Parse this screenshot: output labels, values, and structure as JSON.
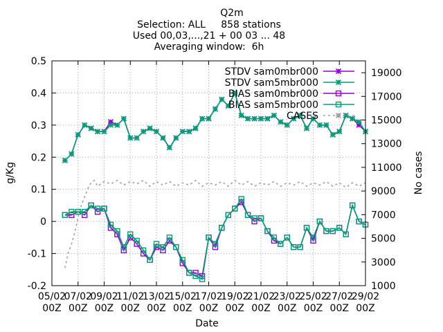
{
  "chart_data": {
    "type": "line",
    "title": "Q2m",
    "subtitle_lines": [
      "Selection: ALL     858 stations",
      "Used 00,03,...,21 + 00 03 ... 48",
      "Averaging window:  6h"
    ],
    "xlabel": "Date",
    "ylabel": "g/Kg",
    "y2label": "No cases",
    "ylim": [
      -0.2,
      0.5
    ],
    "y_ticks": [
      -0.2,
      -0.1,
      0.0,
      0.1,
      0.2,
      0.3,
      0.4,
      0.5
    ],
    "y_tick_labels": [
      "-0.2",
      "-0.1",
      "0",
      "0.1",
      "0.2",
      "0.3",
      "0.4",
      "0.5"
    ],
    "y2lim": [
      1000,
      20000
    ],
    "y2_ticks": [
      1000,
      3000,
      5000,
      7000,
      9000,
      11000,
      13000,
      15000,
      17000,
      19000
    ],
    "y2_tick_labels": [
      "1000",
      "3000",
      "5000",
      "7000",
      "9000",
      "11000",
      "13000",
      "15000",
      "17000",
      "19000"
    ],
    "xlim": [
      0,
      24
    ],
    "x_ticks": [
      0,
      2,
      4,
      6,
      8,
      10,
      12,
      14,
      16,
      18,
      20,
      22,
      24
    ],
    "x_tick_labels": [
      [
        "05/02",
        "00Z"
      ],
      [
        "07/02",
        "00Z"
      ],
      [
        "09/02",
        "00Z"
      ],
      [
        "11/02",
        "00Z"
      ],
      [
        "13/02",
        "00Z"
      ],
      [
        "15/02",
        "00Z"
      ],
      [
        "17/02",
        "00Z"
      ],
      [
        "19/02",
        "00Z"
      ],
      [
        "21/02",
        "00Z"
      ],
      [
        "23/02",
        "00Z"
      ],
      [
        "25/02",
        "00Z"
      ],
      [
        "27/02",
        "00Z"
      ],
      [
        "29/02",
        "00Z"
      ]
    ],
    "x_unit": "days from 05/02 00Z",
    "grid": true,
    "legend_position": "top-right",
    "series": [
      {
        "name": "STDV sam0mbr000",
        "axis": "y",
        "marker": "star",
        "color": "#9400d3",
        "x": [
          1,
          1.5,
          2,
          2.5,
          3,
          3.5,
          4,
          4.5,
          5,
          5.5,
          6,
          6.5,
          7,
          7.5,
          8,
          8.5,
          9,
          9.5,
          10,
          10.5,
          11,
          11.5,
          12,
          12.5,
          13,
          13.5,
          14,
          14.5,
          15,
          15.5,
          16,
          16.5,
          17,
          17.5,
          18,
          18.5,
          19,
          19.5,
          20,
          20.5,
          21,
          21.5,
          22,
          22.5,
          23,
          23.5,
          24
        ],
        "y": [
          0.19,
          0.21,
          0.27,
          0.3,
          0.29,
          0.28,
          0.28,
          0.31,
          0.3,
          0.32,
          0.26,
          0.26,
          0.28,
          0.29,
          0.28,
          0.26,
          0.23,
          0.26,
          0.28,
          0.28,
          0.29,
          0.32,
          0.32,
          0.35,
          0.38,
          0.36,
          0.4,
          0.33,
          0.32,
          0.32,
          0.32,
          0.32,
          0.33,
          0.31,
          0.3,
          0.32,
          0.33,
          0.29,
          0.32,
          0.3,
          0.3,
          0.27,
          0.28,
          0.33,
          0.32,
          0.3,
          0.28
        ]
      },
      {
        "name": "STDV sam5mbr000",
        "axis": "y",
        "marker": "star",
        "color": "#009e73",
        "x": [
          1,
          1.5,
          2,
          2.5,
          3,
          3.5,
          4,
          4.5,
          5,
          5.5,
          6,
          6.5,
          7,
          7.5,
          8,
          8.5,
          9,
          9.5,
          10,
          10.5,
          11,
          11.5,
          12,
          12.5,
          13,
          13.5,
          14,
          14.5,
          15,
          15.5,
          16,
          16.5,
          17,
          17.5,
          18,
          18.5,
          19,
          19.5,
          20,
          20.5,
          21,
          21.5,
          22,
          22.5,
          23,
          23.5,
          24
        ],
        "y": [
          0.19,
          0.21,
          0.27,
          0.3,
          0.29,
          0.28,
          0.28,
          0.3,
          0.3,
          0.32,
          0.26,
          0.26,
          0.28,
          0.29,
          0.28,
          0.26,
          0.23,
          0.26,
          0.28,
          0.28,
          0.29,
          0.32,
          0.32,
          0.35,
          0.38,
          0.36,
          0.4,
          0.33,
          0.32,
          0.32,
          0.32,
          0.32,
          0.33,
          0.31,
          0.3,
          0.32,
          0.33,
          0.29,
          0.32,
          0.3,
          0.3,
          0.27,
          0.28,
          0.33,
          0.32,
          0.31,
          0.28
        ]
      },
      {
        "name": "BIAS sam0mbr000",
        "axis": "y",
        "marker": "square",
        "color": "#9400d3",
        "x": [
          1,
          1.5,
          2,
          2.5,
          3,
          3.5,
          4,
          4.5,
          5,
          5.5,
          6,
          6.5,
          7,
          7.5,
          8,
          8.5,
          9,
          9.5,
          10,
          10.5,
          11,
          11.5,
          12,
          12.5,
          13,
          13.5,
          14,
          14.5,
          15,
          15.5,
          16,
          16.5,
          17,
          17.5,
          18,
          18.5,
          19,
          19.5,
          20,
          20.5,
          21,
          21.5,
          22,
          22.5,
          23,
          23.5,
          24
        ],
        "y": [
          0.02,
          0.02,
          0.03,
          0.02,
          0.05,
          0.03,
          0.04,
          -0.02,
          -0.04,
          -0.09,
          -0.05,
          -0.07,
          -0.1,
          -0.12,
          -0.08,
          -0.09,
          -0.06,
          -0.08,
          -0.13,
          -0.16,
          -0.16,
          -0.17,
          -0.05,
          -0.08,
          -0.02,
          0.02,
          0.04,
          0.06,
          0.02,
          0.0,
          0.01,
          -0.03,
          -0.06,
          -0.07,
          -0.05,
          -0.08,
          -0.08,
          -0.02,
          -0.06,
          0.0,
          -0.03,
          -0.03,
          -0.02,
          -0.04,
          0.05,
          0.0,
          -0.01
        ]
      },
      {
        "name": "BIAS sam5mbr000",
        "axis": "y",
        "marker": "square",
        "color": "#009e73",
        "x": [
          1,
          1.5,
          2,
          2.5,
          3,
          3.5,
          4,
          4.5,
          5,
          5.5,
          6,
          6.5,
          7,
          7.5,
          8,
          8.5,
          9,
          9.5,
          10,
          10.5,
          11,
          11.5,
          12,
          12.5,
          13,
          13.5,
          14,
          14.5,
          15,
          15.5,
          16,
          16.5,
          17,
          17.5,
          18,
          18.5,
          19,
          19.5,
          20,
          20.5,
          21,
          21.5,
          22,
          22.5,
          23,
          23.5,
          24
        ],
        "y": [
          0.02,
          0.03,
          0.03,
          0.03,
          0.05,
          0.04,
          0.04,
          -0.01,
          -0.03,
          -0.08,
          -0.04,
          -0.06,
          -0.09,
          -0.12,
          -0.07,
          -0.08,
          -0.05,
          -0.08,
          -0.12,
          -0.16,
          -0.17,
          -0.18,
          -0.05,
          -0.07,
          -0.02,
          0.02,
          0.04,
          0.07,
          0.02,
          0.01,
          0.01,
          -0.03,
          -0.05,
          -0.07,
          -0.05,
          -0.08,
          -0.08,
          -0.02,
          -0.05,
          0.0,
          -0.03,
          -0.03,
          -0.02,
          -0.04,
          0.05,
          0.0,
          -0.01
        ]
      },
      {
        "name": "CASES",
        "axis": "y2",
        "marker": "dashed",
        "color": "#a0a0a0",
        "x": [
          1,
          1.25,
          1.5,
          1.75,
          2,
          2.25,
          2.5,
          2.75,
          3,
          3.25,
          3.5,
          4,
          4.5,
          5,
          5.5,
          6,
          6.5,
          7,
          7.5,
          8,
          8.5,
          9,
          9.5,
          10,
          10.5,
          11,
          11.5,
          12,
          12.5,
          13,
          13.5,
          14,
          14.5,
          15,
          15.5,
          16,
          16.5,
          17,
          17.5,
          18,
          18.5,
          19,
          19.5,
          20,
          20.5,
          21,
          21.5,
          22,
          22.5,
          23,
          23.5,
          24
        ],
        "y": [
          2500,
          3800,
          4500,
          5500,
          6800,
          7800,
          8500,
          9200,
          9700,
          9900,
          9400,
          9800,
          9600,
          9900,
          9500,
          9800,
          9600,
          9900,
          9400,
          9800,
          9500,
          9800,
          9400,
          9700,
          9500,
          9900,
          9400,
          9700,
          9500,
          9800,
          9400,
          9900,
          9500,
          9800,
          9400,
          9700,
          9500,
          9800,
          9400,
          9700,
          9500,
          9800,
          9400,
          9700,
          9500,
          9800,
          9400,
          9700,
          9300,
          9700,
          9400,
          9700
        ]
      }
    ]
  }
}
